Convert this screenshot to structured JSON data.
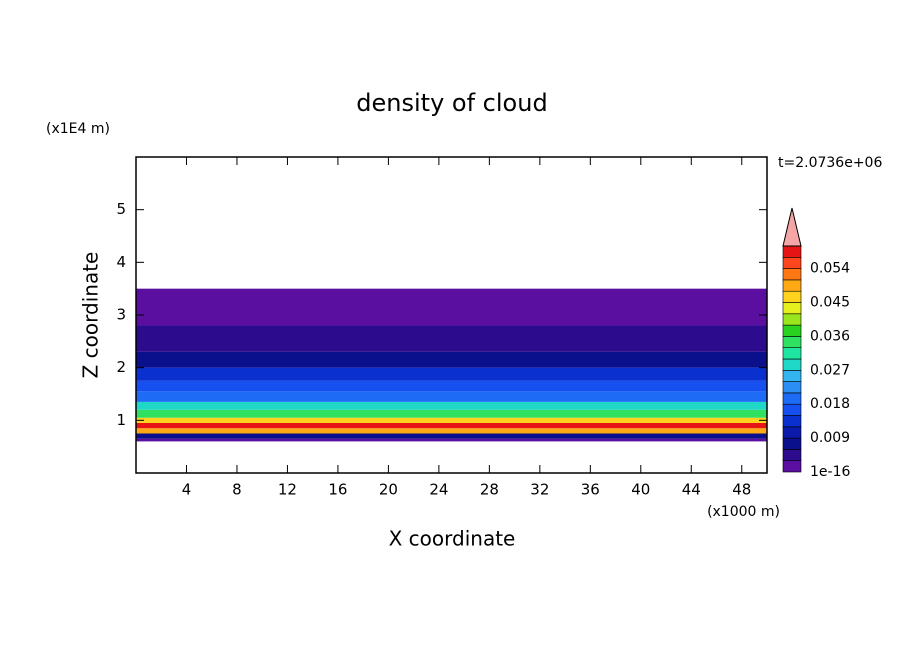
{
  "chart_data": {
    "type": "contour",
    "title": "density of cloud",
    "x_label": "X coordinate",
    "x_unit": "(x1000 m)",
    "y_label": "Z coordinate",
    "y_unit": "(x1E4 m)",
    "time_label": "t=2.0736e+06",
    "xlim": [
      0,
      50
    ],
    "xticks": [
      4,
      8,
      12,
      16,
      20,
      24,
      28,
      32,
      36,
      40,
      44,
      48
    ],
    "ylim": [
      0,
      6
    ],
    "yticks": [
      1,
      2,
      3,
      4,
      5
    ],
    "z_edges": [
      0.6,
      0.65,
      0.75,
      0.85,
      0.95,
      1.05,
      1.2,
      1.35,
      1.55,
      1.75,
      2.0,
      2.3,
      2.8,
      3.5
    ],
    "values": [
      0.001,
      0.008,
      0.05,
      0.058,
      0.045,
      0.033,
      0.027,
      0.02,
      0.016,
      0.012,
      0.008,
      0.004,
      0.001
    ],
    "colorbar": {
      "levels": [
        1e-16,
        0.003,
        0.006,
        0.009,
        0.012,
        0.015,
        0.018,
        0.021,
        0.024,
        0.027,
        0.03,
        0.033,
        0.036,
        0.039,
        0.042,
        0.045,
        0.048,
        0.051,
        0.054,
        0.057,
        0.06
      ],
      "colors": [
        "#5a0fa0",
        "#2c0c8c",
        "#0a0f8c",
        "#0b1aa8",
        "#0a30d0",
        "#1650f0",
        "#1e6cf5",
        "#2a8ef5",
        "#33b4f0",
        "#20d8c8",
        "#1ee6a0",
        "#30e060",
        "#28d21e",
        "#9ae61e",
        "#e6f01e",
        "#ffd21e",
        "#ffaa14",
        "#ff7814",
        "#ff461e",
        "#e61414"
      ],
      "extend_color": "#f4a6a6",
      "ticks": [
        1e-16,
        0.009,
        0.018,
        0.027,
        0.036,
        0.045,
        0.054
      ]
    }
  }
}
